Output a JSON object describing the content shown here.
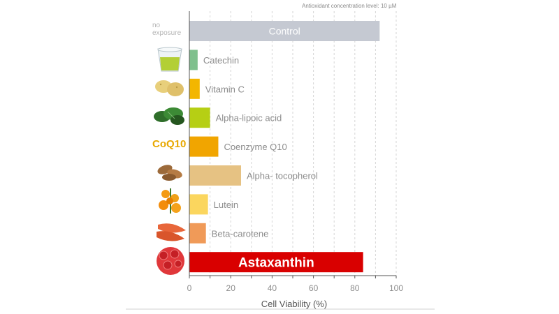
{
  "note": "Antioxidant concentration level: 10 µM",
  "no_exposure_label": [
    "no",
    "exposure"
  ],
  "coq10_logo": "CoQ10",
  "colors": {
    "control": "#c5c9d2",
    "catechin": "#7fc08d",
    "vitamin_c": "#f3b600",
    "alpha_lipoic": "#b6cf14",
    "coq10": "#f1a500",
    "tocopherol": "#e6c283",
    "lutein": "#fbd65e",
    "beta_carotene": "#f09a58",
    "astaxanthin": "#d90000",
    "axis": "#555555",
    "grid": "#d6d6d6",
    "label_gray": "#8c8c8c"
  },
  "icons": [
    "none",
    "green-tea-glass-icon",
    "potatoes-icon",
    "spinach-icon",
    "coq10-logo-icon",
    "almonds-icon",
    "marigold-flowers-icon",
    "carrots-icon",
    "red-cells-icon"
  ],
  "chart_data": {
    "type": "bar",
    "orientation": "horizontal",
    "categories": [
      "Control",
      "Catechin",
      "Vitamin C",
      "Alpha-lipoic acid",
      "Coenzyme Q10",
      "Alpha- tocopherol",
      "Lutein",
      "Beta-carotene",
      "Astaxanthin"
    ],
    "values": [
      92,
      4,
      5,
      10,
      14,
      25,
      9,
      8,
      84
    ],
    "xlabel": "Cell Viability (%)",
    "ylabel": "",
    "xlim": [
      0,
      100
    ],
    "xticks": [
      0,
      20,
      40,
      60,
      80,
      100
    ],
    "grid": "vertical dashed",
    "legend": "none"
  }
}
